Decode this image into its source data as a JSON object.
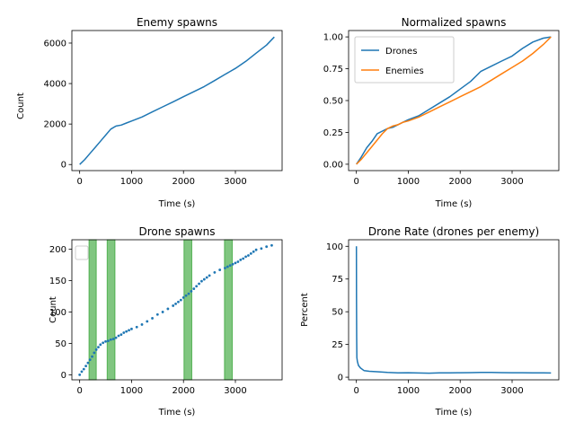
{
  "colors": {
    "blue": "#1f77b4",
    "orange": "#ff7f0e",
    "green": "#2ca02c"
  },
  "chart_data": [
    {
      "type": "line",
      "title": "Enemy spawns",
      "xlabel": "Time (s)",
      "ylabel": "Count",
      "xlim": [
        -150,
        3900
      ],
      "ylim": [
        -300,
        6620
      ],
      "xticks": [
        0,
        1000,
        2000,
        3000
      ],
      "yticks": [
        0,
        2000,
        4000,
        6000
      ],
      "grid": false,
      "series": [
        {
          "color": "#1f77b4",
          "x": [
            0,
            100,
            200,
            300,
            400,
            500,
            600,
            700,
            800,
            900,
            1000,
            1200,
            1400,
            1600,
            1800,
            2000,
            2200,
            2400,
            2600,
            2800,
            3000,
            3200,
            3400,
            3600,
            3750
          ],
          "y": [
            0,
            250,
            550,
            850,
            1150,
            1450,
            1750,
            1900,
            1950,
            2050,
            2150,
            2350,
            2600,
            2850,
            3100,
            3350,
            3600,
            3850,
            4150,
            4450,
            4750,
            5100,
            5500,
            5900,
            6300
          ]
        }
      ]
    },
    {
      "type": "line",
      "title": "Normalized spawns",
      "xlabel": "Time (s)",
      "ylabel": "",
      "xlim": [
        -150,
        3900
      ],
      "ylim": [
        -0.05,
        1.05
      ],
      "xticks": [
        0,
        1000,
        2000,
        3000
      ],
      "yticks": [
        0.0,
        0.25,
        0.5,
        0.75,
        1.0
      ],
      "ytick_labels": [
        "0.00",
        "0.25",
        "0.50",
        "0.75",
        "1.00"
      ],
      "grid": false,
      "legend": "upper-left",
      "series": [
        {
          "name": "Drones",
          "color": "#1f77b4",
          "x": [
            0,
            100,
            200,
            300,
            400,
            500,
            600,
            700,
            800,
            900,
            1000,
            1200,
            1400,
            1600,
            1800,
            2000,
            2200,
            2400,
            2600,
            2800,
            3000,
            3200,
            3400,
            3600,
            3750
          ],
          "y": [
            0,
            0.06,
            0.13,
            0.18,
            0.24,
            0.26,
            0.28,
            0.29,
            0.31,
            0.33,
            0.35,
            0.38,
            0.43,
            0.48,
            0.53,
            0.59,
            0.65,
            0.73,
            0.77,
            0.81,
            0.85,
            0.91,
            0.96,
            0.99,
            1.0
          ]
        },
        {
          "name": "Enemies",
          "color": "#ff7f0e",
          "x": [
            0,
            100,
            200,
            300,
            400,
            500,
            600,
            700,
            800,
            900,
            1000,
            1200,
            1400,
            1600,
            1800,
            2000,
            2200,
            2400,
            2600,
            2800,
            3000,
            3200,
            3400,
            3600,
            3750
          ],
          "y": [
            0,
            0.04,
            0.09,
            0.14,
            0.19,
            0.24,
            0.28,
            0.3,
            0.31,
            0.33,
            0.34,
            0.37,
            0.41,
            0.45,
            0.49,
            0.53,
            0.57,
            0.61,
            0.66,
            0.71,
            0.76,
            0.81,
            0.87,
            0.94,
            1.0
          ]
        }
      ]
    },
    {
      "type": "scatter",
      "title": "Drone spawns",
      "xlabel": "Time (s)",
      "ylabel": "Count",
      "xlim": [
        -150,
        3900
      ],
      "ylim": [
        -8,
        215
      ],
      "xticks": [
        0,
        1000,
        2000,
        3000
      ],
      "yticks": [
        0,
        50,
        100,
        150,
        200
      ],
      "grid": false,
      "legend": "upper-left (empty)",
      "spans": [
        [
          180,
          320
        ],
        [
          530,
          680
        ],
        [
          2010,
          2160
        ],
        [
          2790,
          2940
        ]
      ],
      "series": [
        {
          "color": "#1f77b4",
          "x": [
            0,
            40,
            80,
            120,
            160,
            200,
            240,
            280,
            320,
            360,
            400,
            450,
            500,
            550,
            600,
            650,
            700,
            750,
            800,
            850,
            900,
            950,
            1000,
            1100,
            1200,
            1300,
            1400,
            1500,
            1600,
            1700,
            1800,
            1850,
            1900,
            1950,
            2000,
            2050,
            2100,
            2150,
            2200,
            2250,
            2300,
            2350,
            2400,
            2450,
            2500,
            2600,
            2700,
            2800,
            2850,
            2900,
            2950,
            3000,
            3050,
            3100,
            3150,
            3200,
            3250,
            3300,
            3350,
            3400,
            3500,
            3600,
            3700
          ],
          "y": [
            0,
            5,
            9,
            14,
            19,
            24,
            29,
            35,
            40,
            44,
            48,
            51,
            53,
            54,
            56,
            57,
            59,
            62,
            64,
            67,
            69,
            71,
            73,
            76,
            80,
            85,
            90,
            96,
            100,
            105,
            110,
            113,
            116,
            119,
            123,
            126,
            129,
            133,
            137,
            141,
            145,
            149,
            152,
            155,
            158,
            163,
            167,
            170,
            172,
            174,
            176,
            178,
            180,
            183,
            185,
            188,
            190,
            193,
            196,
            199,
            201,
            204,
            206
          ]
        }
      ]
    },
    {
      "type": "line",
      "title": "Drone Rate (drones per enemy)",
      "xlabel": "Time (s)",
      "ylabel": "Percent",
      "xlim": [
        -150,
        3900
      ],
      "ylim": [
        -2,
        105
      ],
      "xticks": [
        0,
        1000,
        2000,
        3000
      ],
      "yticks": [
        0,
        25,
        50,
        75,
        100
      ],
      "grid": false,
      "series": [
        {
          "color": "#1f77b4",
          "x": [
            0,
            2,
            5,
            10,
            20,
            40,
            80,
            150,
            250,
            400,
            600,
            800,
            1000,
            1200,
            1400,
            1600,
            1800,
            2000,
            2200,
            2400,
            2600,
            2800,
            3000,
            3200,
            3400,
            3600,
            3750
          ],
          "y": [
            100,
            60,
            30,
            15,
            12,
            9,
            7,
            5,
            4.5,
            4.2,
            3.6,
            3.3,
            3.4,
            3.2,
            3.1,
            3.3,
            3.3,
            3.4,
            3.5,
            3.6,
            3.6,
            3.5,
            3.4,
            3.4,
            3.3,
            3.3,
            3.2
          ]
        }
      ]
    }
  ]
}
